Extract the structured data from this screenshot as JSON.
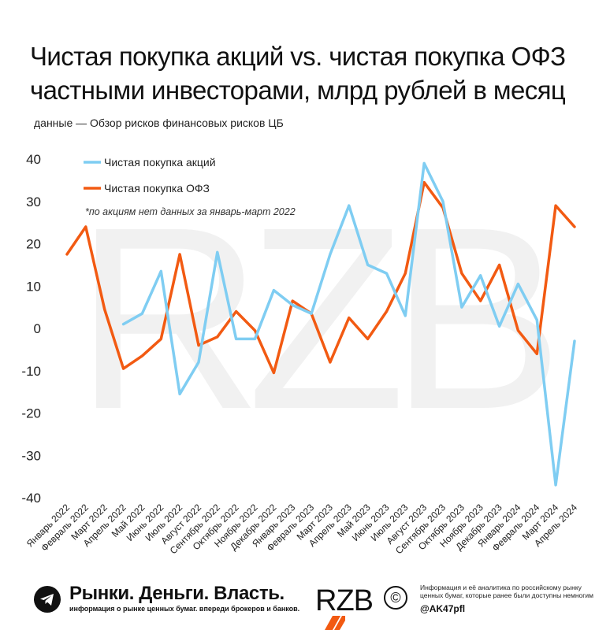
{
  "header": {
    "title_line1": "Чистая покупка акций vs. чистая покупка ОФЗ",
    "title_line2": "частными инвесторами, млрд рублей в месяц",
    "subtitle": "данные — Обзор рисков финансовых рисков ЦБ"
  },
  "chart_data": {
    "type": "line",
    "title": "",
    "xlabel": "",
    "ylabel": "",
    "ylim": [
      -40,
      40
    ],
    "yticks": [
      40,
      30,
      20,
      10,
      0,
      -10,
      -20,
      -30,
      -40
    ],
    "grid": false,
    "legend_position": "top-left",
    "annotation": "*по акциям нет данных за январь-март 2022",
    "watermark": "RZB",
    "categories": [
      "Январь 2022",
      "Февраль 2022",
      "Март 2022",
      "Апрель 2022",
      "Май 2022",
      "Июнь 2022",
      "Июль 2022",
      "Август 2022",
      "Сентябрь 2022",
      "Октябрь 2022",
      "Ноябрь 2022",
      "Декабрь 2022",
      "Январь 2023",
      "Февраль 2023",
      "Март 2023",
      "Апрель 2023",
      "Май 2023",
      "Июнь 2023",
      "Июль 2023",
      "Август 2023",
      "Сентябрь 2023",
      "Октябрь 2023",
      "Ноябрь 2023",
      "Декабрь 2023",
      "Январь 2024",
      "Февраль 2024",
      "Март 2024",
      "Апрель 2024"
    ],
    "series": [
      {
        "name": "Чистая покупка акций",
        "color": "#7fcdf2",
        "values": [
          null,
          null,
          null,
          1,
          3.5,
          13.5,
          -15.5,
          -8,
          18,
          -2.5,
          -2.5,
          9,
          5.5,
          3.5,
          17.5,
          29,
          15,
          13,
          3,
          39,
          30,
          5,
          12.5,
          0.5,
          10.5,
          2,
          -37,
          -3
        ]
      },
      {
        "name": "Чистая покупка ОФЗ",
        "color": "#f25a12",
        "values": [
          17.5,
          24,
          4.5,
          -9.5,
          -6.5,
          -2.5,
          17.5,
          -4,
          -2,
          4,
          -0.5,
          -10.5,
          6.5,
          3.5,
          -8,
          2.5,
          -2.5,
          4,
          13,
          34.5,
          28.5,
          13,
          6.5,
          15,
          -0.5,
          -6,
          29,
          24
        ]
      }
    ]
  },
  "footer": {
    "brand": "Рынки. Деньги. Власть.",
    "tagline": "информация о рынке ценных бумаг. впереди брокеров и банков.",
    "logo_text": "RZB",
    "copyright": "©",
    "info": "Информация и её аналитика по российскому рынку ценных бумаг, которые ранее были доступны немногим",
    "handle": "@AK47pfl",
    "icon": "telegram-icon"
  }
}
